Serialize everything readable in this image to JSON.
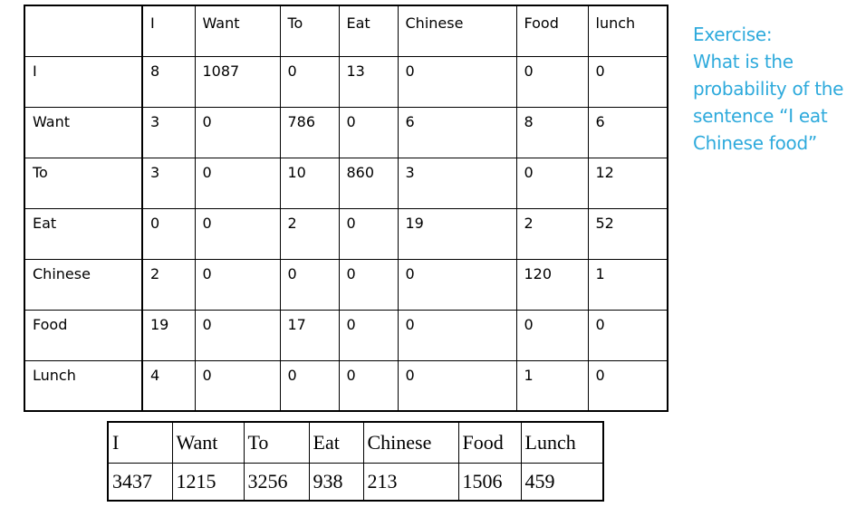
{
  "bigram_table": {
    "header": [
      "",
      "I",
      "Want",
      "To",
      "Eat",
      "Chinese",
      "Food",
      "lunch"
    ],
    "rows": [
      {
        "label": "I",
        "cells": [
          "8",
          "1087",
          "0",
          "13",
          "0",
          "0",
          "0"
        ]
      },
      {
        "label": "Want",
        "cells": [
          "3",
          "0",
          "786",
          "0",
          "6",
          "8",
          "6"
        ]
      },
      {
        "label": "To",
        "cells": [
          "3",
          "0",
          "10",
          "860",
          "3",
          "0",
          "12"
        ]
      },
      {
        "label": "Eat",
        "cells": [
          "0",
          "0",
          "2",
          "0",
          "19",
          "2",
          "52"
        ]
      },
      {
        "label": "Chinese",
        "cells": [
          "2",
          "0",
          "0",
          "0",
          "0",
          "120",
          "1"
        ]
      },
      {
        "label": "Food",
        "cells": [
          "19",
          "0",
          "17",
          "0",
          "0",
          "0",
          "0"
        ]
      },
      {
        "label": "Lunch",
        "cells": [
          "4",
          "0",
          "0",
          "0",
          "0",
          "1",
          "0"
        ]
      }
    ]
  },
  "unigram_table": {
    "words": [
      "I",
      "Want",
      "To",
      "Eat",
      "Chinese",
      "Food",
      "Lunch"
    ],
    "counts": [
      "3437",
      "1215",
      "3256",
      "938",
      "213",
      "1506",
      "459"
    ]
  },
  "exercise": {
    "lines": [
      "Exercise:",
      "What is the",
      "probability of the",
      "sentence “I eat",
      "Chinese food”"
    ],
    "color": "#2eaadc"
  }
}
